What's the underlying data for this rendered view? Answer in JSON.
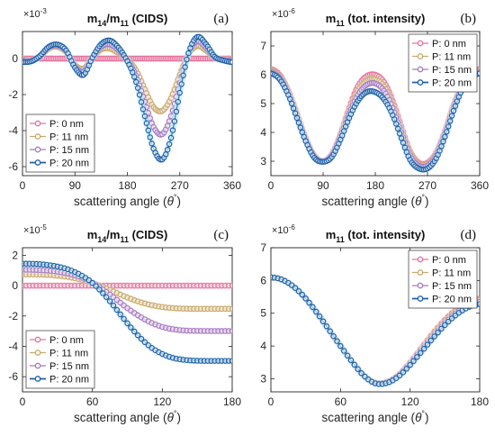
{
  "colors": {
    "series": [
      "#e6739f",
      "#c9a96b",
      "#a77bc0",
      "#1f5fa8"
    ],
    "glow": [
      "#f8c6d6",
      "#ece0c0",
      "#e4d2ee",
      "#b9ecf8"
    ]
  },
  "chart_data": [
    {
      "id": "a",
      "type": "scatter",
      "title": "m14/m11 (CIDS)",
      "title_main": "m",
      "title_sub1": "14",
      "title_mid": "/m",
      "title_sub2": "11",
      "title_tail": " (CIDS)",
      "panel_label": "(a)",
      "exponent_label": "×10",
      "exponent_power": "-3",
      "xlabel": "scattering angle (θ°)",
      "xlabel_main": "scattering angle (",
      "xlabel_theta": "θ",
      "xlabel_deg": "°",
      "xlabel_close": ")",
      "xlim": [
        0,
        360
      ],
      "ylim": [
        -6.5,
        1.5
      ],
      "xticks": [
        0,
        90,
        180,
        270,
        360
      ],
      "xtick_labels": [
        "0",
        "90",
        "180",
        "270",
        "360"
      ],
      "yticks": [
        -6,
        -4,
        -2,
        0
      ],
      "ytick_labels": [
        "-6",
        "-4",
        "-2",
        "0"
      ],
      "legend_position": "bottom-left",
      "series": [
        {
          "name": "P: 0 nm",
          "x": [
            0,
            30,
            60,
            90,
            120,
            150,
            180,
            210,
            240,
            270,
            300,
            330,
            360
          ],
          "y": [
            0,
            0,
            0,
            0,
            0,
            0,
            0,
            0,
            0,
            0,
            0,
            0,
            0
          ]
        },
        {
          "name": "P: 11 nm",
          "x": [
            0,
            15,
            30,
            45,
            60,
            75,
            90,
            105,
            120,
            135,
            150,
            165,
            180,
            195,
            210,
            225,
            240,
            255,
            270,
            285,
            300,
            315,
            330,
            345,
            360
          ],
          "y": [
            -0.05,
            -0.1,
            0.1,
            0.55,
            0.65,
            0.35,
            -0.35,
            -0.55,
            0.05,
            0.5,
            0.55,
            0.3,
            -0.05,
            -0.65,
            -1.7,
            -2.7,
            -2.9,
            -2.2,
            -0.9,
            0.25,
            0.7,
            0.45,
            0.05,
            -0.05,
            -0.05
          ]
        },
        {
          "name": "P: 15 nm",
          "x": [
            0,
            15,
            30,
            45,
            60,
            75,
            90,
            105,
            120,
            135,
            150,
            165,
            180,
            195,
            210,
            225,
            240,
            255,
            270,
            285,
            300,
            315,
            330,
            345,
            360
          ],
          "y": [
            -0.1,
            -0.15,
            0.12,
            0.62,
            0.72,
            0.4,
            -0.42,
            -0.72,
            0.05,
            0.65,
            0.78,
            0.45,
            -0.1,
            -0.95,
            -2.4,
            -3.8,
            -4.2,
            -3.2,
            -1.35,
            0.3,
            0.95,
            0.6,
            0.08,
            -0.08,
            -0.1
          ]
        },
        {
          "name": "P: 20 nm",
          "x": [
            0,
            15,
            30,
            45,
            60,
            75,
            90,
            105,
            120,
            135,
            150,
            165,
            180,
            195,
            210,
            225,
            240,
            255,
            270,
            285,
            300,
            315,
            330,
            345,
            360
          ],
          "y": [
            -0.2,
            -0.15,
            0.15,
            0.65,
            0.78,
            0.45,
            -0.5,
            -0.9,
            0.05,
            0.8,
            1.0,
            0.6,
            -0.15,
            -1.3,
            -3.2,
            -5.0,
            -5.6,
            -4.4,
            -1.9,
            0.3,
            1.2,
            0.8,
            0.1,
            -0.1,
            -0.2
          ]
        }
      ]
    },
    {
      "id": "b",
      "type": "scatter",
      "title": "m11 (tot. intensity)",
      "title_main": "m",
      "title_sub1": "11",
      "title_mid": "",
      "title_sub2": "",
      "title_tail": " (tot. intensity)",
      "panel_label": "(b)",
      "exponent_label": "×10",
      "exponent_power": "-6",
      "xlabel": "scattering angle (θ°)",
      "xlabel_main": "scattering angle (",
      "xlabel_theta": "θ",
      "xlabel_deg": "°",
      "xlabel_close": ")",
      "xlim": [
        0,
        360
      ],
      "ylim": [
        2.5,
        7.5
      ],
      "xticks": [
        0,
        90,
        180,
        270,
        360
      ],
      "xtick_labels": [
        "0",
        "90",
        "180",
        "270",
        "360"
      ],
      "yticks": [
        3,
        4,
        5,
        6,
        7
      ],
      "ytick_labels": [
        "3",
        "4",
        "5",
        "6",
        "7"
      ],
      "legend_position": "top-right",
      "series": [
        {
          "name": "P: 0 nm",
          "x": [
            0,
            15,
            30,
            45,
            60,
            75,
            90,
            105,
            120,
            135,
            150,
            165,
            180,
            195,
            210,
            225,
            240,
            255,
            270,
            285,
            300,
            315,
            330,
            345,
            360
          ],
          "y": [
            6.2,
            6.0,
            5.45,
            4.65,
            3.8,
            3.2,
            3.0,
            3.25,
            3.95,
            4.85,
            5.6,
            5.95,
            6.0,
            5.75,
            5.1,
            4.2,
            3.35,
            2.95,
            2.95,
            3.3,
            4.05,
            4.95,
            5.65,
            6.05,
            6.2
          ]
        },
        {
          "name": "P: 11 nm",
          "x": [
            0,
            15,
            30,
            45,
            60,
            75,
            90,
            105,
            120,
            135,
            150,
            165,
            180,
            195,
            210,
            225,
            240,
            255,
            270,
            285,
            300,
            315,
            330,
            345,
            360
          ],
          "y": [
            6.15,
            5.95,
            5.4,
            4.6,
            3.78,
            3.18,
            3.0,
            3.22,
            3.9,
            4.75,
            5.45,
            5.8,
            5.85,
            5.6,
            4.98,
            4.1,
            3.3,
            2.9,
            2.9,
            3.25,
            4.0,
            4.9,
            5.6,
            6.0,
            6.15
          ]
        },
        {
          "name": "P: 15 nm",
          "x": [
            0,
            15,
            30,
            45,
            60,
            75,
            90,
            105,
            120,
            135,
            150,
            165,
            180,
            195,
            210,
            225,
            240,
            255,
            270,
            285,
            300,
            315,
            330,
            345,
            360
          ],
          "y": [
            6.1,
            5.9,
            5.35,
            4.55,
            3.75,
            3.15,
            3.0,
            3.2,
            3.85,
            4.65,
            5.3,
            5.65,
            5.7,
            5.45,
            4.85,
            4.0,
            3.2,
            2.85,
            2.85,
            3.2,
            3.95,
            4.85,
            5.55,
            5.95,
            6.1
          ]
        },
        {
          "name": "P: 20 nm",
          "x": [
            0,
            15,
            30,
            45,
            60,
            75,
            90,
            105,
            120,
            135,
            150,
            165,
            180,
            195,
            210,
            225,
            240,
            255,
            270,
            285,
            300,
            315,
            330,
            345,
            360
          ],
          "y": [
            6.05,
            5.85,
            5.3,
            4.5,
            3.7,
            3.12,
            2.98,
            3.15,
            3.75,
            4.5,
            5.1,
            5.4,
            5.4,
            5.15,
            4.6,
            3.8,
            3.05,
            2.75,
            2.75,
            3.1,
            3.85,
            4.75,
            5.5,
            5.9,
            6.05
          ]
        }
      ]
    },
    {
      "id": "c",
      "type": "scatter",
      "title": "m14/m11 (CIDS)",
      "title_main": "m",
      "title_sub1": "14",
      "title_mid": "/m",
      "title_sub2": "11",
      "title_tail": " (CIDS)",
      "panel_label": "(c)",
      "exponent_label": "×10",
      "exponent_power": "-5",
      "xlabel": "scattering angle (θ°)",
      "xlabel_main": "scattering angle (",
      "xlabel_theta": "θ",
      "xlabel_deg": "°",
      "xlabel_close": ")",
      "xlim": [
        0,
        180
      ],
      "ylim": [
        -7,
        2.5
      ],
      "xticks": [
        0,
        60,
        120,
        180
      ],
      "xtick_labels": [
        "0",
        "60",
        "120",
        "180"
      ],
      "yticks": [
        -6,
        -4,
        -2,
        0,
        2
      ],
      "ytick_labels": [
        "-6",
        "-4",
        "-2",
        "0",
        "2"
      ],
      "legend_position": "bottom-left",
      "series": [
        {
          "name": "P: 0 nm",
          "x": [
            0,
            20,
            40,
            60,
            80,
            100,
            120,
            140,
            160,
            180
          ],
          "y": [
            0,
            0,
            0,
            0,
            0,
            0,
            0,
            0,
            0,
            0
          ]
        },
        {
          "name": "P: 11 nm",
          "x": [
            0,
            10,
            20,
            30,
            40,
            50,
            60,
            70,
            80,
            90,
            100,
            110,
            120,
            130,
            140,
            150,
            160,
            170,
            180
          ],
          "y": [
            0.75,
            0.74,
            0.72,
            0.66,
            0.56,
            0.4,
            0.18,
            -0.12,
            -0.45,
            -0.78,
            -1.06,
            -1.27,
            -1.41,
            -1.48,
            -1.52,
            -1.53,
            -1.53,
            -1.53,
            -1.53
          ]
        },
        {
          "name": "P: 15 nm",
          "x": [
            0,
            10,
            20,
            30,
            40,
            50,
            60,
            70,
            80,
            90,
            100,
            110,
            120,
            130,
            140,
            150,
            160,
            170,
            180
          ],
          "y": [
            1.05,
            1.04,
            1.0,
            0.92,
            0.78,
            0.55,
            0.2,
            -0.3,
            -0.88,
            -1.48,
            -2.0,
            -2.42,
            -2.72,
            -2.88,
            -2.96,
            -2.98,
            -2.99,
            -2.99,
            -2.99
          ]
        },
        {
          "name": "P: 20 nm",
          "x": [
            0,
            10,
            20,
            30,
            40,
            50,
            60,
            70,
            80,
            90,
            100,
            110,
            120,
            130,
            140,
            150,
            160,
            170,
            180
          ],
          "y": [
            1.45,
            1.44,
            1.38,
            1.26,
            1.05,
            0.7,
            0.18,
            -0.58,
            -1.5,
            -2.48,
            -3.35,
            -4.05,
            -4.5,
            -4.78,
            -4.9,
            -4.95,
            -4.96,
            -4.96,
            -4.96
          ]
        }
      ]
    },
    {
      "id": "d",
      "type": "scatter",
      "title": "m11 (tot. intensity)",
      "title_main": "m",
      "title_sub1": "11",
      "title_mid": "",
      "title_sub2": "",
      "title_tail": " (tot. intensity)",
      "panel_label": "(d)",
      "exponent_label": "×10",
      "exponent_power": "-6",
      "xlabel": "scattering angle (θ°)",
      "xlabel_main": "scattering angle (",
      "xlabel_theta": "θ",
      "xlabel_deg": "°",
      "xlabel_close": ")",
      "xlim": [
        0,
        180
      ],
      "ylim": [
        2.6,
        7.0
      ],
      "xticks": [
        0,
        60,
        120,
        180
      ],
      "xtick_labels": [
        "0",
        "60",
        "120",
        "180"
      ],
      "yticks": [
        3,
        4,
        5,
        6,
        7
      ],
      "ytick_labels": [
        "3",
        "4",
        "5",
        "6",
        "7"
      ],
      "legend_position": "top-right",
      "series": [
        {
          "name": "P: 0 nm",
          "x": [
            0,
            10,
            20,
            30,
            40,
            50,
            60,
            70,
            80,
            90,
            100,
            110,
            120,
            130,
            140,
            150,
            160,
            170,
            180
          ],
          "y": [
            6.1,
            6.02,
            5.8,
            5.45,
            5.0,
            4.5,
            4.0,
            3.52,
            3.1,
            2.88,
            2.9,
            3.12,
            3.5,
            3.95,
            4.4,
            4.8,
            5.12,
            5.35,
            5.45
          ]
        },
        {
          "name": "P: 11 nm",
          "x": [
            0,
            10,
            20,
            30,
            40,
            50,
            60,
            70,
            80,
            90,
            100,
            110,
            120,
            130,
            140,
            150,
            160,
            170,
            180
          ],
          "y": [
            6.1,
            6.02,
            5.8,
            5.45,
            5.0,
            4.5,
            4.0,
            3.52,
            3.1,
            2.88,
            2.9,
            3.11,
            3.48,
            3.92,
            4.36,
            4.76,
            5.08,
            5.31,
            5.41
          ]
        },
        {
          "name": "P: 15 nm",
          "x": [
            0,
            10,
            20,
            30,
            40,
            50,
            60,
            70,
            80,
            90,
            100,
            110,
            120,
            130,
            140,
            150,
            160,
            170,
            180
          ],
          "y": [
            6.1,
            6.02,
            5.8,
            5.45,
            5.0,
            4.5,
            4.0,
            3.52,
            3.1,
            2.87,
            2.89,
            3.1,
            3.46,
            3.88,
            4.3,
            4.7,
            5.02,
            5.25,
            5.35
          ]
        },
        {
          "name": "P: 20 nm",
          "x": [
            0,
            10,
            20,
            30,
            40,
            50,
            60,
            70,
            80,
            90,
            100,
            110,
            120,
            130,
            140,
            150,
            160,
            170,
            180
          ],
          "y": [
            6.1,
            6.02,
            5.8,
            5.45,
            5.0,
            4.5,
            4.0,
            3.52,
            3.1,
            2.86,
            2.87,
            3.07,
            3.42,
            3.83,
            4.25,
            4.64,
            4.96,
            5.18,
            5.28
          ]
        }
      ]
    }
  ]
}
